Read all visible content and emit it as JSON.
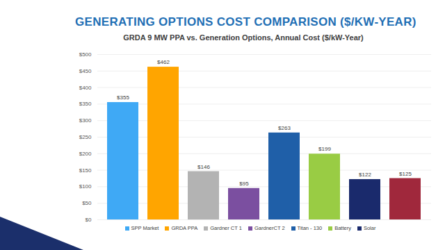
{
  "chart_data": {
    "type": "bar",
    "title": "GENERATING OPTIONS COST COMPARISON ($/KW-YEAR)",
    "subtitle": "GRDA 9 MW PPA vs. Generation Options, Annual Cost ($/kW-Year)",
    "categories": [
      "SPP Market",
      "GRDA PPA",
      "Gardner CT 1",
      "GardnerCT 2",
      "Titan - 130",
      "Battery",
      "Solar",
      null
    ],
    "values": [
      355,
      462,
      146,
      95,
      263,
      199,
      122,
      125
    ],
    "value_labels": [
      "$355",
      "$462",
      "$146",
      "$95",
      "$263",
      "$199",
      "$122",
      "$125"
    ],
    "colors": [
      "#3fa9f5",
      "#ffa500",
      "#b3b3b3",
      "#7b4fa0",
      "#1f5fa8",
      "#99cc44",
      "#1a2a6c",
      "#a0283c"
    ],
    "ylim": [
      0,
      500
    ],
    "yticks": [
      {
        "value": 0,
        "label": "$0"
      },
      {
        "value": 50,
        "label": "$50"
      },
      {
        "value": 100,
        "label": "$100"
      },
      {
        "value": 150,
        "label": "$150"
      },
      {
        "value": 200,
        "label": "$200"
      },
      {
        "value": 250,
        "label": "$250"
      },
      {
        "value": 300,
        "label": "$300"
      },
      {
        "value": 350,
        "label": "$350"
      },
      {
        "value": 400,
        "label": "$400"
      },
      {
        "value": 450,
        "label": "$450"
      },
      {
        "value": 500,
        "label": "$500"
      }
    ],
    "grid": true,
    "data_labels": true,
    "legend": "bottom",
    "tick_labels": "y"
  }
}
